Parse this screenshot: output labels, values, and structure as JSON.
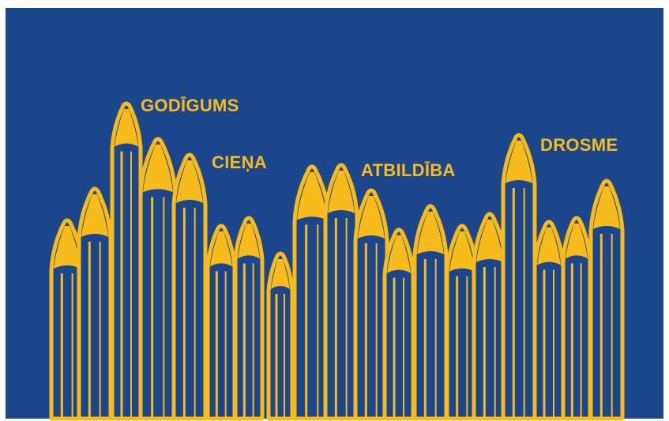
{
  "labels": [
    "GODĪGUMS",
    "CIEŅA",
    "ATBILDĪBA",
    "DROSME"
  ]
}
